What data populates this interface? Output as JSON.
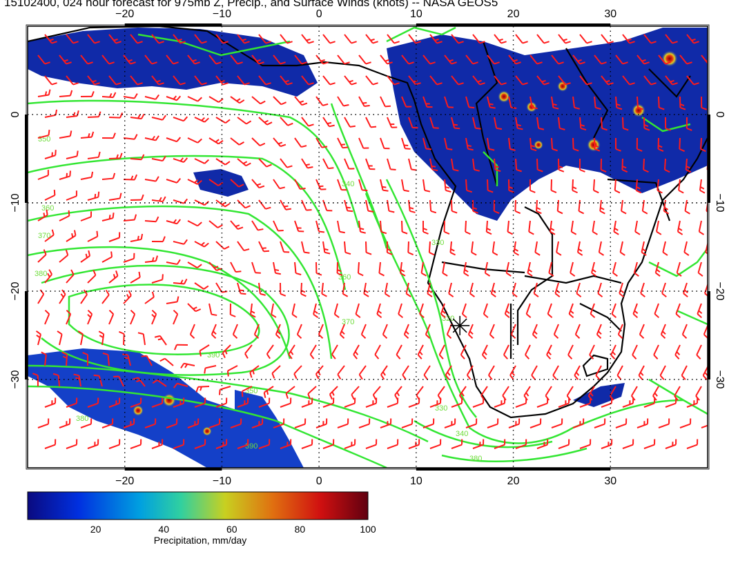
{
  "title": "15102400, 024 hour forecast for 975mb Z, Precip., and Surface Winds (knots) -- NASA GEOS5",
  "map": {
    "lon_range": [
      -30,
      40
    ],
    "lat_range": [
      -40,
      10
    ],
    "lon_ticks": [
      {
        "value": -20,
        "label": "−20"
      },
      {
        "value": -10,
        "label": "−10"
      },
      {
        "value": 0,
        "label": "0"
      },
      {
        "value": 10,
        "label": "10"
      },
      {
        "value": 20,
        "label": "20"
      },
      {
        "value": 30,
        "label": "30"
      }
    ],
    "lat_ticks": [
      {
        "value": 0,
        "label": "0"
      },
      {
        "value": -10,
        "label": "−10"
      },
      {
        "value": -20,
        "label": "−20"
      },
      {
        "value": -30,
        "label": "−30"
      }
    ],
    "grid": "dotted",
    "contour_labels": [
      "350",
      "360",
      "370",
      "380",
      "390",
      "340",
      "330",
      "320",
      "360",
      "370",
      "380",
      "350",
      "330",
      "340",
      "380",
      "390"
    ],
    "marker": {
      "symbol": "asterisk",
      "lon": 14.5,
      "lat": -23.9
    },
    "colors": {
      "contour": "#33e633",
      "wind_barb": "#ff1a1a",
      "coastline": "#000000",
      "precip_low": "#0b1ea0",
      "precip_high": "#8b0000"
    }
  },
  "colorbar": {
    "ticks": [
      "20",
      "40",
      "60",
      "80",
      "100"
    ],
    "label": "Precipitation, mm/day",
    "range": [
      0,
      100
    ]
  }
}
